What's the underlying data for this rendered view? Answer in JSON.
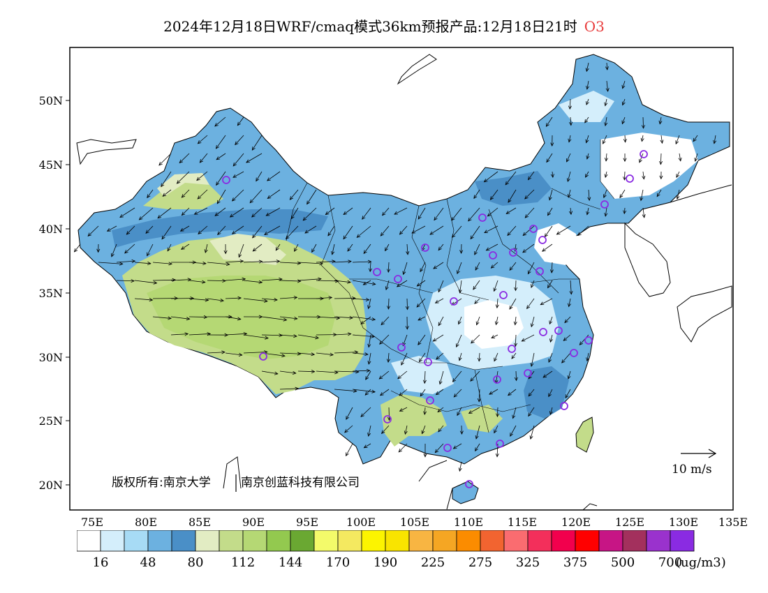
{
  "title": {
    "main": "2024年12月18日WRF/cmaq模式36km预报产品:12月18日21时",
    "species": "O3"
  },
  "axes": {
    "lat_labels": [
      "50N",
      "45N",
      "40N",
      "35N",
      "30N",
      "25N",
      "20N"
    ],
    "lon_labels": [
      "75E",
      "80E",
      "85E",
      "90E",
      "95E",
      "100E",
      "105E",
      "110E",
      "115E",
      "120E",
      "125E",
      "130E",
      "135E"
    ]
  },
  "annotations": {
    "copyright": "版权所有:南京大学",
    "company": "南京创蓝科技有限公司",
    "wind_scale": "10 m/s"
  },
  "colorbar": {
    "labels": [
      "16",
      "48",
      "80",
      "112",
      "144",
      "170",
      "190",
      "225",
      "275",
      "325",
      "375",
      "500",
      "700"
    ],
    "unit": "(ug/m3)",
    "colors": [
      "#ffffff",
      "#d4eefb",
      "#a7dbf5",
      "#6cb1e0",
      "#4a8fc7",
      "#e2ecc3",
      "#c3dc8a",
      "#b5d874",
      "#93c94f",
      "#6aa832",
      "#f3fa6a",
      "#f4e960",
      "#fcf400",
      "#f9e400",
      "#f8b542",
      "#f5a623",
      "#fb8c00",
      "#f26430",
      "#fa6c70",
      "#f32f5b",
      "#f2004d",
      "#ff0000",
      "#c71585",
      "#a3305d",
      "#9a32cd",
      "#8a2be2"
    ]
  },
  "stations": 34
}
